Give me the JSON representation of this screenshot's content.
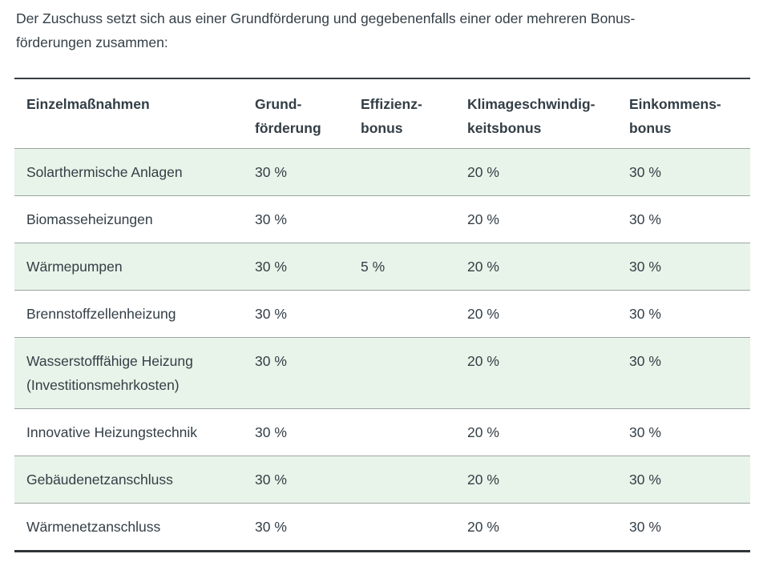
{
  "intro": {
    "lines": [
      "Der Zuschuss setzt sich aus einer Grundförderung und gegebenenfalls einer oder mehreren Bonus-",
      "förderungen zusammen:"
    ]
  },
  "table": {
    "headers": [
      "Einzelmaßnahmen",
      "Grund-\nförderung",
      "Effizienz-\nbonus",
      "Klimageschwindig-\nkeitsbonus",
      "Einkommens-\nbonus"
    ],
    "rows": [
      {
        "cells": [
          "Solarthermische Anlagen",
          "30 %",
          "",
          "20 %",
          "30 %"
        ],
        "highlighted": true
      },
      {
        "cells": [
          "Biomasseheizungen",
          "30 %",
          "",
          "20 %",
          "30 %"
        ],
        "highlighted": false
      },
      {
        "cells": [
          "Wärmepumpen",
          "30 %",
          "5 %",
          "20 %",
          "30 %"
        ],
        "highlighted": true
      },
      {
        "cells": [
          "Brennstoffzellenheizung",
          "30 %",
          "",
          "20 %",
          "30 %"
        ],
        "highlighted": false
      },
      {
        "cells": [
          "Wasserstofffähige Heizung\n(Investitionsmehrkosten)",
          "30 %",
          "",
          "20 %",
          "30 %"
        ],
        "highlighted": true
      },
      {
        "cells": [
          "Innovative Heizungstechnik",
          "30 %",
          "",
          "20 %",
          "30 %"
        ],
        "highlighted": false
      },
      {
        "cells": [
          "Gebäudenetzanschluss",
          "30 %",
          "",
          "20 %",
          "30 %"
        ],
        "highlighted": true
      },
      {
        "cells": [
          "Wärmenetzanschluss",
          "30 %",
          "",
          "20 %",
          "30 %"
        ],
        "highlighted": false
      }
    ]
  },
  "colors": {
    "row_highlight": "#e8f4e9",
    "table_border_top": "#383d41",
    "table_border_bottom": "#2f353a",
    "row_separator": "#9ca4a1",
    "text": "#333e46"
  }
}
